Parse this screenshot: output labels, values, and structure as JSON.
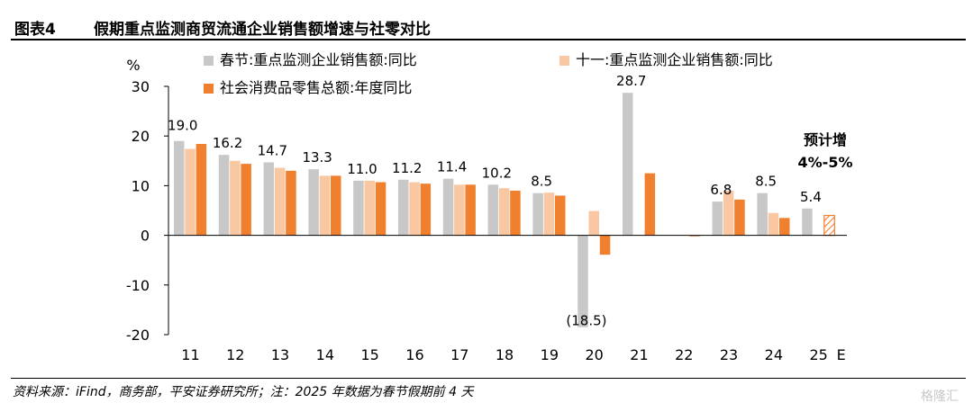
{
  "figure": {
    "number": "图表4",
    "title": "假期重点监测商贸流通企业销售额增速与社零对比"
  },
  "source_note": "资料来源：iFind，商务部，平安证券研究所；注：2025 年数据为春节假期前 4 天",
  "watermark": "格隆汇",
  "chart_data": {
    "type": "bar",
    "ylabel": "%",
    "ylim": [
      -20,
      30
    ],
    "yticks": [
      30,
      20,
      10,
      0,
      -10,
      -20
    ],
    "grid": false,
    "legend_position": "top",
    "categories": [
      "11",
      "12",
      "13",
      "14",
      "15",
      "16",
      "17",
      "18",
      "19",
      "20",
      "21",
      "22",
      "23",
      "24",
      "25"
    ],
    "axis_suffix": "E",
    "series": [
      {
        "name": "春节:重点监测企业销售额:同比",
        "color": "#c8c8c8",
        "values": [
          19.0,
          16.2,
          14.7,
          13.3,
          11.0,
          11.2,
          11.4,
          10.2,
          8.5,
          -18.5,
          28.7,
          null,
          6.8,
          8.5,
          5.4
        ]
      },
      {
        "name": "十一:重点监测企业销售额:同比",
        "color": "#f9c8a3",
        "values": [
          17.4,
          15.0,
          13.6,
          12.0,
          11.0,
          10.7,
          10.2,
          9.5,
          8.6,
          4.9,
          null,
          null,
          9.0,
          4.5,
          null
        ]
      },
      {
        "name": "社会消费品零售总额:年度同比",
        "color": "#f07f2e",
        "values": [
          18.4,
          14.4,
          13.0,
          12.0,
          10.7,
          10.4,
          10.2,
          9.0,
          8.0,
          -3.9,
          12.5,
          -0.2,
          7.2,
          3.5,
          4.0
        ]
      }
    ],
    "data_labels": [
      "19.0",
      "16.2",
      "14.7",
      "13.3",
      "11.0",
      "11.2",
      "11.4",
      "10.2",
      "8.5",
      "(18.5)",
      "28.7",
      "",
      "6.8",
      "8.5",
      "5.4"
    ],
    "negative_label_color": "#d9302c",
    "estimate_bar": {
      "category": "25",
      "series_index": 2,
      "hatched": true
    },
    "annotation": [
      "预计增",
      "4%-5%"
    ]
  }
}
